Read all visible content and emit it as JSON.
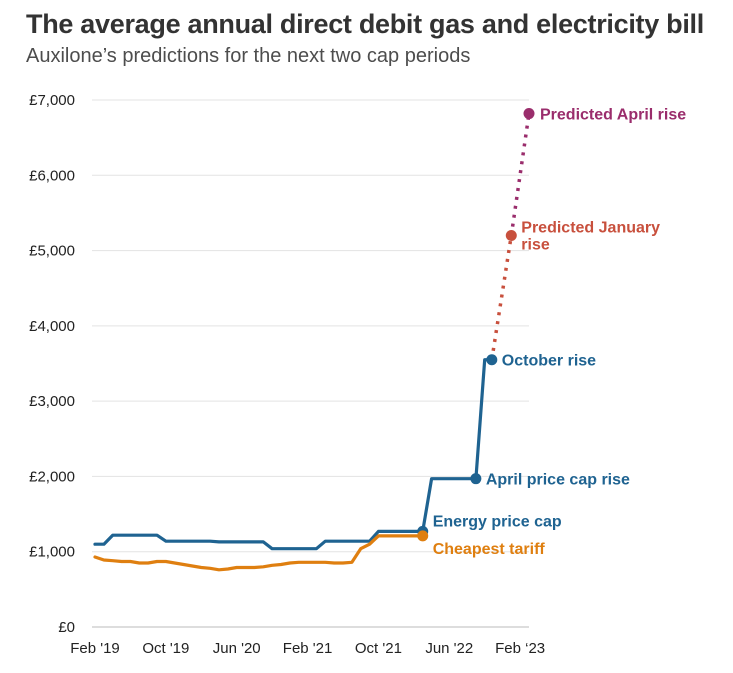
{
  "title": "The average annual direct debit gas and electricity bill",
  "subtitle": "Auxilone’s predictions for the next two cap periods",
  "colors": {
    "cap": "#1f6391",
    "cheapest": "#df7f10",
    "january": "#c8503d",
    "april": "#9a2d6c",
    "grid": "#e3e3e3"
  },
  "chart_data": {
    "type": "line",
    "x_unit": "months since Jan 2019",
    "xlim": [
      1,
      50
    ],
    "ylim": [
      0,
      7000
    ],
    "ytick_values": [
      0,
      1000,
      2000,
      3000,
      4000,
      5000,
      6000,
      7000
    ],
    "ytick_labels": [
      "£0",
      "£1,000",
      "£2,000",
      "£3,000",
      "£4,000",
      "£5,000",
      "£6,000",
      "£7,000"
    ],
    "xtick_values": [
      1,
      9,
      17,
      25,
      33,
      41,
      49
    ],
    "xtick_labels": [
      "Feb '19",
      "Oct '19",
      "Jun '20",
      "Feb '21",
      "Oct '21",
      "Jun '22",
      "Feb ‘23"
    ],
    "grid": true,
    "series": [
      {
        "key": "cap",
        "name": "Energy price cap",
        "style": "solid",
        "x": [
          1,
          2,
          3,
          8,
          9,
          14,
          15,
          20,
          21,
          26,
          27,
          32,
          33,
          38,
          39,
          44,
          45,
          45.8
        ],
        "y": [
          1100,
          1100,
          1220,
          1220,
          1140,
          1140,
          1130,
          1130,
          1040,
          1040,
          1140,
          1140,
          1270,
          1270,
          1970,
          1970,
          3550,
          3550
        ]
      },
      {
        "key": "cheapest",
        "name": "Cheapest tariff",
        "style": "solid",
        "x": [
          1,
          2,
          3,
          4,
          5,
          6,
          7,
          8,
          9,
          10,
          11,
          12,
          13,
          14,
          15,
          16,
          17,
          18,
          19,
          20,
          21,
          22,
          23,
          24,
          25,
          26,
          27,
          28,
          29,
          30,
          31,
          32,
          33,
          34,
          35,
          36,
          37,
          38
        ],
        "y": [
          930,
          890,
          880,
          870,
          870,
          850,
          850,
          870,
          870,
          850,
          830,
          810,
          790,
          780,
          760,
          770,
          790,
          790,
          790,
          800,
          820,
          830,
          850,
          860,
          860,
          860,
          860,
          850,
          850,
          860,
          1040,
          1100,
          1210,
          1210,
          1210,
          1210,
          1210,
          1210
        ]
      },
      {
        "key": "january",
        "name": "Predicted January rise",
        "style": "dotted",
        "x": [
          45.8,
          48
        ],
        "y": [
          3550,
          5200
        ]
      },
      {
        "key": "april",
        "name": "Predicted April rise",
        "style": "dotted",
        "x": [
          48,
          50
        ],
        "y": [
          5200,
          6820
        ]
      }
    ],
    "annotations": [
      {
        "label": "Predicted April rise",
        "x": 50,
        "y": 6820,
        "color_key": "april"
      },
      {
        "label": "Predicted January rise",
        "x": 48,
        "y": 5200,
        "color_key": "january"
      },
      {
        "label": "October rise",
        "x": 45.8,
        "y": 3550,
        "color_key": "cap"
      },
      {
        "label": "April price cap rise",
        "x": 44,
        "y": 1970,
        "color_key": "cap"
      },
      {
        "label": "Energy price cap",
        "x": 38,
        "y": 1270,
        "color_key": "cap"
      },
      {
        "label": "Cheapest tariff",
        "x": 38,
        "y": 1210,
        "color_key": "cheapest"
      }
    ]
  }
}
